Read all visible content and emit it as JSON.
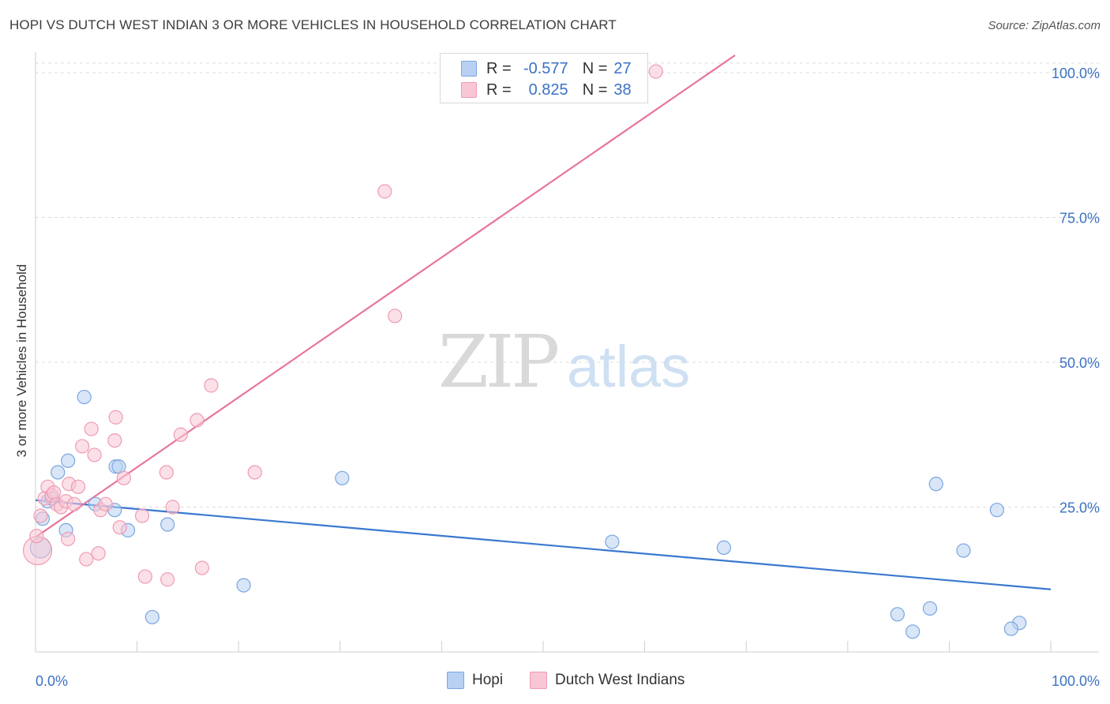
{
  "title": "HOPI VS DUTCH WEST INDIAN 3 OR MORE VEHICLES IN HOUSEHOLD CORRELATION CHART",
  "source": "Source: ZipAtlas.com",
  "watermark": {
    "zip": "ZIP",
    "atlas": "atlas"
  },
  "legend": {
    "r_label": "R =",
    "n_label": "N =",
    "rows": [
      {
        "name": "Hopi",
        "r": "-0.577",
        "n": "27",
        "fill": "#b8d1f3",
        "stroke": "#7aa6e0"
      },
      {
        "name": "Dutch West Indians",
        "r": "0.825",
        "n": "38",
        "fill": "#f9c6d4",
        "stroke": "#ee9bb4"
      }
    ]
  },
  "bottom_legend": [
    "Hopi",
    "Dutch West Indians"
  ],
  "chart_data": {
    "type": "scatter",
    "title": "HOPI VS DUTCH WEST INDIAN 3 OR MORE VEHICLES IN HOUSEHOLD CORRELATION CHART",
    "xlabel": "",
    "ylabel": "3 or more Vehicles in Household",
    "xlim": [
      0,
      100
    ],
    "ylim": [
      0,
      103
    ],
    "x_tick_labels": [
      "0.0%",
      "100.0%"
    ],
    "y_ticks": [
      25,
      50,
      75,
      100
    ],
    "y_tick_labels": [
      "25.0%",
      "50.0%",
      "75.0%",
      "100.0%"
    ],
    "grid": true,
    "series": [
      {
        "name": "Hopi",
        "color": "#3a78d0",
        "fill": "#b8d1f3",
        "stroke": "#7aa6e0",
        "points": [
          [
            0.5,
            18
          ],
          [
            0.7,
            23
          ],
          [
            1.2,
            26
          ],
          [
            1.6,
            26.5
          ],
          [
            2.2,
            31
          ],
          [
            3.0,
            21
          ],
          [
            3.2,
            33
          ],
          [
            4.8,
            44
          ],
          [
            5.9,
            25.5
          ],
          [
            7.9,
            32
          ],
          [
            8.2,
            32
          ],
          [
            7.8,
            24.5
          ],
          [
            9.1,
            21
          ],
          [
            11.5,
            6
          ],
          [
            13,
            22
          ],
          [
            20.5,
            11.5
          ],
          [
            30.2,
            30
          ],
          [
            56.8,
            19
          ],
          [
            67.8,
            18
          ],
          [
            84.9,
            6.5
          ],
          [
            88.1,
            7.5
          ],
          [
            88.7,
            29
          ],
          [
            91.4,
            17.5
          ],
          [
            94.7,
            24.5
          ],
          [
            96.9,
            5
          ],
          [
            86.4,
            3.5
          ],
          [
            96.1,
            4
          ]
        ],
        "trend": [
          [
            0,
            26.2
          ],
          [
            100,
            10.8
          ]
        ]
      },
      {
        "name": "Dutch West Indians",
        "color": "#e8759a",
        "fill": "#f9c6d4",
        "stroke": "#ee9bb4",
        "points": [
          [
            0.2,
            17.5
          ],
          [
            0.5,
            23.5
          ],
          [
            0.9,
            26.5
          ],
          [
            1.2,
            28.5
          ],
          [
            1.6,
            27
          ],
          [
            1.8,
            27.5
          ],
          [
            2.1,
            25.5
          ],
          [
            2.5,
            25
          ],
          [
            3.0,
            26
          ],
          [
            3.2,
            19.5
          ],
          [
            3.3,
            29
          ],
          [
            3.8,
            25.5
          ],
          [
            4.2,
            28.5
          ],
          [
            4.6,
            35.5
          ],
          [
            5.0,
            16
          ],
          [
            5.5,
            38.5
          ],
          [
            5.8,
            34
          ],
          [
            6.2,
            17
          ],
          [
            6.4,
            24.5
          ],
          [
            6.9,
            25.5
          ],
          [
            7.8,
            36.5
          ],
          [
            7.9,
            40.5
          ],
          [
            8.3,
            21.5
          ],
          [
            8.7,
            30
          ],
          [
            10.5,
            23.5
          ],
          [
            10.8,
            13
          ],
          [
            12.9,
            31
          ],
          [
            13.0,
            12.5
          ],
          [
            13.5,
            25
          ],
          [
            14.3,
            37.5
          ],
          [
            15.9,
            40
          ],
          [
            16.4,
            14.5
          ],
          [
            17.3,
            46
          ],
          [
            21.6,
            31
          ],
          [
            34.4,
            79.5
          ],
          [
            35.4,
            58
          ],
          [
            61.1,
            100.2
          ],
          [
            0.1,
            20
          ]
        ],
        "trend": [
          [
            0,
            19.8
          ],
          [
            68.9,
            103
          ]
        ]
      }
    ]
  }
}
